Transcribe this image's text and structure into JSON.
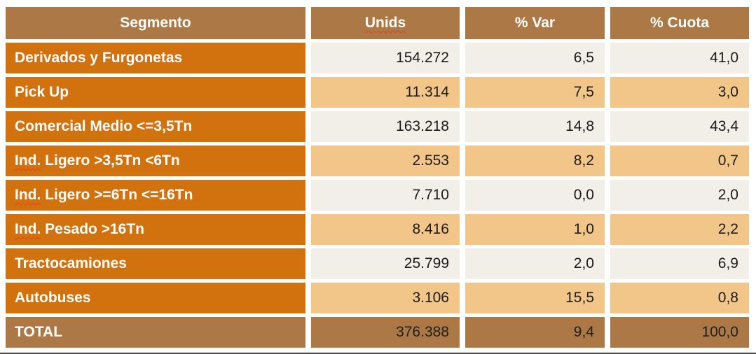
{
  "colors": {
    "header_bg": "#AC7845",
    "segment_label_bg": "#D2720E",
    "row_cream_bg": "#F2EEE8",
    "row_tan_bg": "#F2C689",
    "total_row_bg": "#AC7845",
    "header_text": "#FFFFFF",
    "value_text": "#1B1B1B",
    "spellcheck_squiggle": "#F03B1E",
    "cell_gap": "#FFFFFF"
  },
  "table": {
    "columns": [
      {
        "label": "Segmento"
      },
      {
        "label": "Unids"
      },
      {
        "label": "% Var"
      },
      {
        "label": "% Cuota"
      }
    ],
    "rows": [
      {
        "label_squiggle": "",
        "label_rest": "Derivados y Furgonetas",
        "unids": "154.272",
        "var": "6,5",
        "cuota": "41,0"
      },
      {
        "label_squiggle": "",
        "label_rest": "Pick Up",
        "unids": "11.314",
        "var": "7,5",
        "cuota": "3,0"
      },
      {
        "label_squiggle": "",
        "label_rest": "Comercial Medio <=3,5Tn",
        "unids": "163.218",
        "var": "14,8",
        "cuota": "43,4"
      },
      {
        "label_squiggle": "Ind.",
        "label_rest": " Ligero >3,5Tn <6Tn",
        "unids": "2.553",
        "var": "8,2",
        "cuota": "0,7"
      },
      {
        "label_squiggle": "Ind.",
        "label_rest": " Ligero >=6Tn <=16Tn",
        "unids": "7.710",
        "var": "0,0",
        "cuota": "2,0"
      },
      {
        "label_squiggle": "Ind.",
        "label_rest": " Pesado >16Tn",
        "unids": "8.416",
        "var": "1,0",
        "cuota": "2,2"
      },
      {
        "label_squiggle": "",
        "label_rest": "Tractocamiones",
        "unids": "25.799",
        "var": "2,0",
        "cuota": "6,9"
      },
      {
        "label_squiggle": "",
        "label_rest": "Autobuses",
        "unids": "3.106",
        "var": "15,5",
        "cuota": "0,8"
      }
    ],
    "total": {
      "label": "TOTAL",
      "unids": "376.388",
      "var": "9,4",
      "cuota": "100,0"
    }
  },
  "chart_data": {
    "type": "table",
    "title": "Comercial vehicle registrations by segment",
    "columns": [
      "Segmento",
      "Unids",
      "% Var",
      "% Cuota"
    ],
    "rows": [
      [
        "Derivados y Furgonetas",
        154272,
        6.5,
        41.0
      ],
      [
        "Pick Up",
        11314,
        7.5,
        3.0
      ],
      [
        "Comercial Medio <=3,5Tn",
        163218,
        14.8,
        43.4
      ],
      [
        "Ind. Ligero >3,5Tn <6Tn",
        2553,
        8.2,
        0.7
      ],
      [
        "Ind. Ligero >=6Tn <=16Tn",
        7710,
        0.0,
        2.0
      ],
      [
        "Ind. Pesado >16Tn",
        8416,
        1.0,
        2.2
      ],
      [
        "Tractocamiones",
        25799,
        2.0,
        6.9
      ],
      [
        "Autobuses",
        3106,
        15.5,
        0.8
      ],
      [
        "TOTAL",
        376388,
        9.4,
        100.0
      ]
    ],
    "number_format": "es-ES (thousands '.', decimals ',')",
    "layout": "header row + 8 data rows (alternating cream/tan) + total row"
  }
}
